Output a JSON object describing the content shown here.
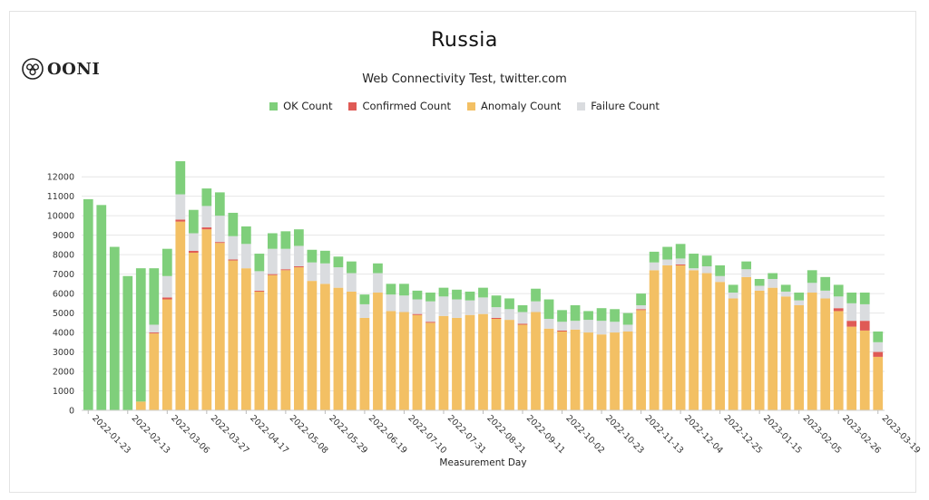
{
  "header": {
    "title": "Russia",
    "subtitle": "Web Connectivity Test, twitter.com",
    "logo_text": "OONI"
  },
  "colors": {
    "ok": "#7fcf7b",
    "confirmed": "#df5a55",
    "anomaly": "#f3c064",
    "failure": "#dadcdf"
  },
  "chart_data": {
    "type": "bar",
    "stacked": true,
    "xlabel": "Measurement Day",
    "ylabel": "",
    "ylim": [
      0,
      12800
    ],
    "yticks": [
      0,
      1000,
      2000,
      3000,
      4000,
      5000,
      6000,
      7000,
      8000,
      9000,
      10000,
      11000,
      12000
    ],
    "grid": true,
    "legend_position": "top",
    "x_tick_labels": [
      "2022-01-23",
      "2022-02-13",
      "2022-03-06",
      "2022-03-27",
      "2022-04-17",
      "2022-05-08",
      "2022-05-29",
      "2022-06-19",
      "2022-07-10",
      "2022-07-31",
      "2022-08-21",
      "2022-09-11",
      "2022-10-02",
      "2022-10-23",
      "2022-11-13",
      "2022-12-04",
      "2022-12-25",
      "2023-01-15",
      "2023-02-05",
      "2023-02-26",
      "2023-03-19"
    ],
    "x_tick_every": 3,
    "series": [
      {
        "name": "Anomaly Count",
        "key": "anomaly",
        "values": [
          0,
          0,
          0,
          0,
          450,
          3950,
          5700,
          9700,
          8100,
          9300,
          8600,
          7700,
          7300,
          6100,
          6950,
          7200,
          7350,
          6650,
          6500,
          6300,
          6100,
          4750,
          6050,
          5100,
          5050,
          4900,
          4500,
          4850,
          4750,
          4900,
          4950,
          4700,
          4650,
          4400,
          5050,
          4200,
          4050,
          4150,
          4000,
          3900,
          4000,
          4050,
          5150,
          7200,
          7450,
          7450,
          7200,
          7050,
          6600,
          5750,
          6850,
          6150,
          6300,
          5850,
          5400,
          6050,
          5750,
          5100,
          4300,
          4100,
          2750
        ]
      },
      {
        "name": "Confirmed Count",
        "key": "confirmed",
        "values": [
          0,
          0,
          0,
          0,
          0,
          50,
          100,
          100,
          100,
          100,
          50,
          50,
          0,
          50,
          50,
          50,
          50,
          0,
          0,
          0,
          0,
          0,
          0,
          0,
          0,
          50,
          50,
          0,
          0,
          0,
          0,
          50,
          0,
          50,
          0,
          0,
          50,
          0,
          0,
          0,
          0,
          0,
          50,
          0,
          0,
          50,
          0,
          0,
          0,
          0,
          0,
          0,
          0,
          0,
          0,
          0,
          0,
          150,
          300,
          500,
          250
        ]
      },
      {
        "name": "Failure Count",
        "key": "failure",
        "values": [
          0,
          0,
          0,
          0,
          0,
          400,
          1100,
          1300,
          900,
          1100,
          1350,
          1200,
          1250,
          1000,
          1300,
          1050,
          1050,
          950,
          1050,
          1050,
          950,
          700,
          1000,
          850,
          850,
          750,
          1050,
          1000,
          950,
          750,
          850,
          550,
          550,
          600,
          550,
          500,
          450,
          450,
          650,
          700,
          550,
          350,
          200,
          400,
          300,
          300,
          100,
          350,
          300,
          300,
          400,
          250,
          450,
          250,
          250,
          500,
          400,
          600,
          900,
          850,
          500
        ]
      },
      {
        "name": "OK Count",
        "key": "ok",
        "values": [
          10850,
          10550,
          8400,
          6900,
          6850,
          2900,
          1400,
          1700,
          1200,
          900,
          1200,
          1200,
          900,
          900,
          800,
          900,
          850,
          650,
          650,
          550,
          600,
          500,
          500,
          550,
          600,
          450,
          450,
          450,
          500,
          450,
          500,
          600,
          550,
          350,
          650,
          1000,
          600,
          800,
          450,
          650,
          650,
          600,
          600,
          550,
          650,
          750,
          750,
          550,
          550,
          400,
          400,
          350,
          300,
          350,
          400,
          650,
          700,
          600,
          550,
          600,
          550
        ]
      }
    ]
  }
}
